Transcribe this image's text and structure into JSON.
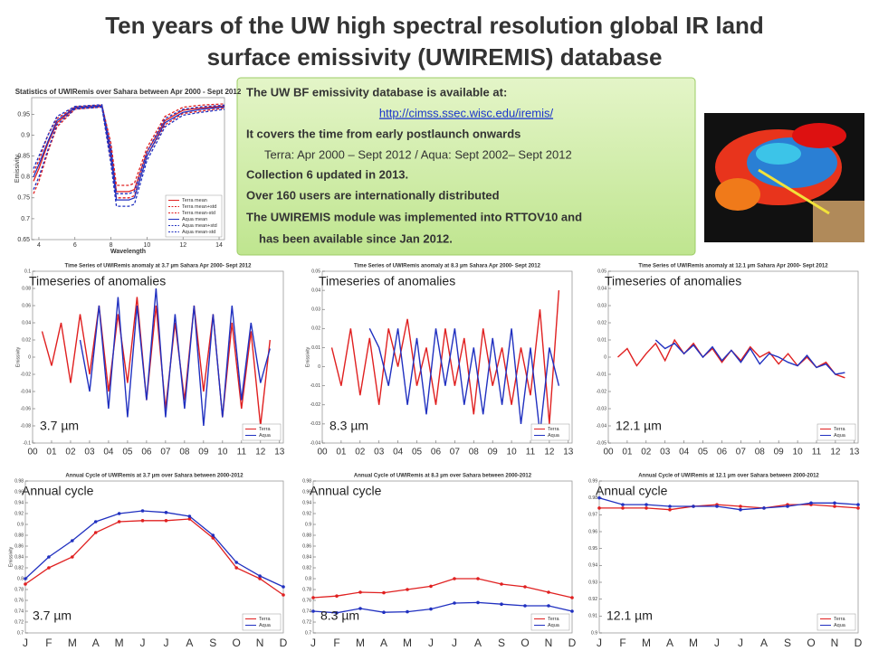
{
  "title": [
    "Ten years of the UW high spectral resolution global IR land",
    "surface emissivity (UWIREMIS) database"
  ],
  "info_box": {
    "lines": [
      "The UW BF emissivity database is available at:",
      "http://cimss.ssec.wisc.edu/iremis/",
      "It covers the time from early postlaunch onwards",
      "Terra: Apr 2000 – Sept 2012 /  Aqua: Sept 2002– Sept 2012",
      "Collection 6 updated in 2013.",
      "Over 160 users are internationally distributed",
      "The UWIREMIS module was implemented into RTTOV10 and",
      "has been available since Jan 2012."
    ]
  },
  "chart_data": [
    {
      "type": "line",
      "title": "Statistics of UWIRemis  over Sahara between Apr 2000 - Sept 2012",
      "xlabel": "Wavelength",
      "ylabel": "Emissivity",
      "x": [
        3.7,
        4,
        4.5,
        5,
        6,
        7.5,
        8,
        8.3,
        8.7,
        9,
        9.3,
        10,
        11,
        12,
        13,
        14.3
      ],
      "xlim": [
        3.6,
        14.3
      ],
      "xticks": [
        4,
        6,
        8,
        10,
        12,
        14
      ],
      "ylim": [
        0.65,
        0.99
      ],
      "yticks": [
        0.65,
        0.7,
        0.75,
        0.8,
        0.85,
        0.9,
        0.95
      ],
      "series": [
        {
          "name": "Terra mean",
          "color": "#e02020",
          "dash": false,
          "values": [
            0.79,
            0.82,
            0.88,
            0.93,
            0.965,
            0.97,
            0.86,
            0.765,
            0.765,
            0.765,
            0.77,
            0.86,
            0.935,
            0.96,
            0.965,
            0.97
          ]
        },
        {
          "name": "Terra mean+std",
          "color": "#e02020",
          "dash": true,
          "values": [
            0.81,
            0.84,
            0.9,
            0.94,
            0.968,
            0.972,
            0.88,
            0.78,
            0.78,
            0.78,
            0.785,
            0.87,
            0.945,
            0.967,
            0.972,
            0.975
          ]
        },
        {
          "name": "Terra mean-std",
          "color": "#e02020",
          "dash": true,
          "values": [
            0.76,
            0.79,
            0.86,
            0.92,
            0.962,
            0.968,
            0.84,
            0.75,
            0.75,
            0.75,
            0.755,
            0.85,
            0.925,
            0.952,
            0.958,
            0.965
          ]
        },
        {
          "name": "Aqua mean",
          "color": "#2030c0",
          "dash": false,
          "values": [
            0.8,
            0.83,
            0.885,
            0.935,
            0.966,
            0.97,
            0.85,
            0.745,
            0.745,
            0.745,
            0.75,
            0.85,
            0.93,
            0.955,
            0.962,
            0.968
          ]
        },
        {
          "name": "Aqua mean+std",
          "color": "#2030c0",
          "dash": true,
          "values": [
            0.82,
            0.85,
            0.9,
            0.945,
            0.969,
            0.973,
            0.87,
            0.76,
            0.76,
            0.76,
            0.765,
            0.86,
            0.94,
            0.962,
            0.968,
            0.972
          ]
        },
        {
          "name": "Aqua mean-std",
          "color": "#2030c0",
          "dash": true,
          "values": [
            0.77,
            0.8,
            0.865,
            0.925,
            0.963,
            0.967,
            0.83,
            0.73,
            0.73,
            0.73,
            0.735,
            0.84,
            0.92,
            0.948,
            0.955,
            0.962
          ]
        }
      ]
    },
    {
      "type": "line",
      "title": "Time Series of UWIRemis anomaly at 3.7 µm  Sahara Apr 2000- Sept 2012",
      "ylabel": "Emissivity",
      "overlay": "Timeseries of anomalies",
      "band": "3.7 µm",
      "x": [
        0.5,
        1,
        1.5,
        2,
        2.5,
        3,
        3.5,
        4,
        4.5,
        5,
        5.5,
        6,
        6.5,
        7,
        7.5,
        8,
        8.5,
        9,
        9.5,
        10,
        10.5,
        11,
        11.5,
        12,
        12.5
      ],
      "xlim": [
        0,
        13.2
      ],
      "xticks": [
        {
          "value": 0,
          "label": "00"
        },
        {
          "value": 1,
          "label": "01"
        },
        {
          "value": 2,
          "label": "02"
        },
        {
          "value": 3,
          "label": "03"
        },
        {
          "value": 4,
          "label": "04"
        },
        {
          "value": 5,
          "label": "05"
        },
        {
          "value": 6,
          "label": "06"
        },
        {
          "value": 7,
          "label": "07"
        },
        {
          "value": 8,
          "label": "08"
        },
        {
          "value": 9,
          "label": "09"
        },
        10,
        11,
        12,
        13
      ],
      "ylim": [
        -0.1,
        0.1
      ],
      "yticks": [
        -0.1,
        -0.08,
        -0.06,
        -0.04,
        -0.02,
        0,
        0.02,
        0.04,
        0.06,
        0.08,
        0.1
      ],
      "series": [
        {
          "name": "Terra",
          "color": "#e02020",
          "values": [
            0.03,
            -0.01,
            0.04,
            -0.03,
            0.05,
            -0.02,
            0.06,
            -0.04,
            0.05,
            -0.03,
            0.07,
            -0.05,
            0.06,
            -0.06,
            0.04,
            -0.05,
            0.06,
            -0.04,
            0.05,
            -0.07,
            0.04,
            -0.06,
            0.03,
            -0.08,
            0.02
          ]
        },
        {
          "name": "Aqua",
          "color": "#2030c0",
          "values": [
            null,
            null,
            null,
            null,
            0.02,
            -0.04,
            0.06,
            -0.06,
            0.07,
            -0.07,
            0.06,
            -0.05,
            0.08,
            -0.07,
            0.05,
            -0.06,
            0.06,
            -0.08,
            0.05,
            -0.07,
            0.06,
            -0.05,
            0.04,
            -0.03,
            0.01
          ]
        }
      ]
    },
    {
      "type": "line",
      "title": "Time Series of UWIRemis anomaly at 8.3 µm  Sahara Apr 2000- Sept 2012",
      "ylabel": "Emissivity",
      "overlay": "Timeseries of anomalies",
      "band": "8.3 µm",
      "x": [
        0.5,
        1,
        1.5,
        2,
        2.5,
        3,
        3.5,
        4,
        4.5,
        5,
        5.5,
        6,
        6.5,
        7,
        7.5,
        8,
        8.5,
        9,
        9.5,
        10,
        10.5,
        11,
        11.5,
        12,
        12.5
      ],
      "xlim": [
        0,
        13.2
      ],
      "xticks": [
        {
          "value": 0,
          "label": "00"
        },
        {
          "value": 1,
          "label": "01"
        },
        {
          "value": 2,
          "label": "02"
        },
        {
          "value": 3,
          "label": "03"
        },
        {
          "value": 4,
          "label": "04"
        },
        {
          "value": 5,
          "label": "05"
        },
        {
          "value": 6,
          "label": "06"
        },
        {
          "value": 7,
          "label": "07"
        },
        {
          "value": 8,
          "label": "08"
        },
        {
          "value": 9,
          "label": "09"
        },
        10,
        11,
        12,
        13
      ],
      "ylim": [
        -0.04,
        0.05
      ],
      "yticks": [
        -0.04,
        -0.03,
        -0.02,
        -0.01,
        0,
        0.01,
        0.02,
        0.03,
        0.04,
        0.05
      ],
      "series": [
        {
          "name": "Terra",
          "color": "#e02020",
          "values": [
            0.01,
            -0.01,
            0.02,
            -0.015,
            0.015,
            -0.02,
            0.02,
            0,
            0.025,
            -0.01,
            0.01,
            -0.02,
            0.02,
            -0.01,
            0.015,
            -0.025,
            0.02,
            -0.01,
            0.01,
            -0.02,
            0.01,
            -0.015,
            0.03,
            -0.03,
            0.04
          ]
        },
        {
          "name": "Aqua",
          "color": "#2030c0",
          "values": [
            null,
            null,
            null,
            null,
            0.02,
            0.01,
            -0.01,
            0.02,
            -0.02,
            0.015,
            -0.025,
            0.02,
            -0.01,
            0.02,
            -0.02,
            0.01,
            -0.025,
            0.015,
            -0.02,
            0.02,
            -0.03,
            0.01,
            -0.035,
            0.01,
            -0.01
          ]
        }
      ]
    },
    {
      "type": "line",
      "title": "Time Series of UWIRemis anomaly at 12.1 µm  Sahara Apr 2000- Sept 2012",
      "overlay": "Timeseries of anomalies",
      "band": "12.1 µm",
      "x": [
        0.5,
        1,
        1.5,
        2,
        2.5,
        3,
        3.5,
        4,
        4.5,
        5,
        5.5,
        6,
        6.5,
        7,
        7.5,
        8,
        8.5,
        9,
        9.5,
        10,
        10.5,
        11,
        11.5,
        12,
        12.5
      ],
      "xlim": [
        0,
        13.2
      ],
      "xticks": [
        {
          "value": 0,
          "label": "00"
        },
        {
          "value": 1,
          "label": "01"
        },
        {
          "value": 2,
          "label": "02"
        },
        {
          "value": 3,
          "label": "03"
        },
        {
          "value": 4,
          "label": "04"
        },
        {
          "value": 5,
          "label": "05"
        },
        {
          "value": 6,
          "label": "06"
        },
        {
          "value": 7,
          "label": "07"
        },
        {
          "value": 8,
          "label": "08"
        },
        {
          "value": 9,
          "label": "09"
        },
        10,
        11,
        12,
        13
      ],
      "ylim": [
        -0.05,
        0.05
      ],
      "yticks": [
        -0.05,
        -0.04,
        -0.03,
        -0.02,
        -0.01,
        0,
        0.01,
        0.02,
        0.03,
        0.04,
        0.05
      ],
      "series": [
        {
          "name": "Terra",
          "color": "#e02020",
          "values": [
            0,
            0.005,
            -0.005,
            0.002,
            0.008,
            -0.002,
            0.01,
            0.002,
            0.008,
            0,
            0.005,
            -0.003,
            0.004,
            -0.002,
            0.006,
            0,
            0.003,
            -0.004,
            0.002,
            -0.005,
            0,
            -0.006,
            -0.003,
            -0.01,
            -0.012
          ]
        },
        {
          "name": "Aqua",
          "color": "#2030c0",
          "values": [
            null,
            null,
            null,
            null,
            0.01,
            0.005,
            0.008,
            0.002,
            0.007,
            0,
            0.006,
            -0.002,
            0.004,
            -0.003,
            0.005,
            -0.004,
            0.002,
            0,
            -0.003,
            -0.005,
            0.001,
            -0.006,
            -0.004,
            -0.01,
            -0.009
          ]
        }
      ]
    },
    {
      "type": "line",
      "marker": true,
      "title": "Annual Cycle of UWIRemis at 3.7 µm over Sahara between 2000-2012",
      "ylabel": "Emissivity",
      "overlay": "Annual cycle",
      "band": "3.7 µm",
      "categories": [
        "J",
        "F",
        "M",
        "A",
        "M",
        "J",
        "J",
        "A",
        "S",
        "O",
        "N",
        "D"
      ],
      "ylim": [
        0.7,
        0.98
      ],
      "yticks": [
        0.7,
        0.72,
        0.74,
        0.76,
        0.78,
        0.8,
        0.82,
        0.84,
        0.86,
        0.88,
        0.9,
        0.92,
        0.94,
        0.96,
        0.98
      ],
      "series": [
        {
          "name": "Terra",
          "color": "#e02020",
          "values": [
            0.79,
            0.82,
            0.84,
            0.885,
            0.905,
            0.907,
            0.907,
            0.91,
            0.875,
            0.82,
            0.8,
            0.77
          ]
        },
        {
          "name": "Aqua",
          "color": "#2030c0",
          "values": [
            0.8,
            0.84,
            0.87,
            0.905,
            0.92,
            0.925,
            0.922,
            0.915,
            0.88,
            0.83,
            0.805,
            0.785
          ]
        }
      ]
    },
    {
      "type": "line",
      "marker": true,
      "title": "Annual Cycle of UWIRemis at 8.3 µm over Sahara between 2000-2012",
      "overlay": "Annual cycle",
      "band": "8.3 µm",
      "categories": [
        "J",
        "F",
        "M",
        "A",
        "M",
        "J",
        "J",
        "A",
        "S",
        "O",
        "N",
        "D"
      ],
      "ylim": [
        0.7,
        0.98
      ],
      "yticks": [
        0.7,
        0.72,
        0.74,
        0.76,
        0.78,
        0.8,
        0.82,
        0.84,
        0.86,
        0.88,
        0.9,
        0.92,
        0.94,
        0.96,
        0.98
      ],
      "series": [
        {
          "name": "Terra",
          "color": "#e02020",
          "values": [
            0.765,
            0.768,
            0.775,
            0.774,
            0.78,
            0.786,
            0.8,
            0.8,
            0.79,
            0.785,
            0.775,
            0.765
          ]
        },
        {
          "name": "Aqua",
          "color": "#2030c0",
          "values": [
            0.74,
            0.737,
            0.745,
            0.738,
            0.739,
            0.744,
            0.755,
            0.756,
            0.753,
            0.75,
            0.75,
            0.74
          ]
        }
      ]
    },
    {
      "type": "line",
      "marker": true,
      "title": "Annual Cycle of UWIRemis at 12.1 µm over Sahara between 2000-2012",
      "overlay": "Annual cycle",
      "band": "12.1 µm",
      "categories": [
        "J",
        "F",
        "M",
        "A",
        "M",
        "J",
        "J",
        "A",
        "S",
        "O",
        "N",
        "D"
      ],
      "ylim": [
        0.9,
        0.99
      ],
      "yticks": [
        0.9,
        0.91,
        0.92,
        0.93,
        0.94,
        0.95,
        0.96,
        0.97,
        0.98,
        0.99
      ],
      "series": [
        {
          "name": "Terra",
          "color": "#e02020",
          "values": [
            0.974,
            0.974,
            0.974,
            0.973,
            0.975,
            0.976,
            0.975,
            0.974,
            0.976,
            0.976,
            0.975,
            0.974
          ]
        },
        {
          "name": "Aqua",
          "color": "#2030c0",
          "values": [
            0.98,
            0.976,
            0.976,
            0.975,
            0.975,
            0.975,
            0.973,
            0.974,
            0.975,
            0.977,
            0.977,
            0.976
          ]
        }
      ]
    }
  ]
}
